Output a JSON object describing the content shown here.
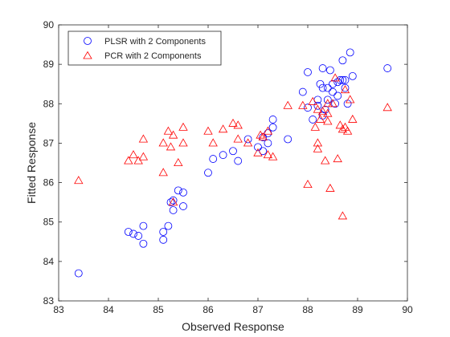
{
  "chart_data": {
    "type": "scatter",
    "title": "",
    "xlabel": "Observed Response",
    "ylabel": "Fitted Response",
    "xlim": [
      83,
      90
    ],
    "ylim": [
      83,
      90
    ],
    "x_ticks": [
      83,
      84,
      85,
      86,
      87,
      88,
      89,
      90
    ],
    "y_ticks": [
      83,
      84,
      85,
      86,
      87,
      88,
      89,
      90
    ],
    "grid": false,
    "legend_location": "top-left",
    "series": [
      {
        "name": "PLSR with 2 Components",
        "marker": "circle",
        "color": "#0000FF",
        "points": [
          [
            83.4,
            83.7
          ],
          [
            84.4,
            84.75
          ],
          [
            84.5,
            84.7
          ],
          [
            84.6,
            84.65
          ],
          [
            84.7,
            84.9
          ],
          [
            84.7,
            84.45
          ],
          [
            85.1,
            84.55
          ],
          [
            85.1,
            84.75
          ],
          [
            85.2,
            84.9
          ],
          [
            85.3,
            85.3
          ],
          [
            85.25,
            85.5
          ],
          [
            85.3,
            85.55
          ],
          [
            85.4,
            85.8
          ],
          [
            85.5,
            85.75
          ],
          [
            85.5,
            85.4
          ],
          [
            86.0,
            86.25
          ],
          [
            86.1,
            86.6
          ],
          [
            86.3,
            86.7
          ],
          [
            86.5,
            86.8
          ],
          [
            86.6,
            86.55
          ],
          [
            86.8,
            87.1
          ],
          [
            87.0,
            86.9
          ],
          [
            87.1,
            87.15
          ],
          [
            87.1,
            86.8
          ],
          [
            87.2,
            87.25
          ],
          [
            87.2,
            87.0
          ],
          [
            87.3,
            87.4
          ],
          [
            87.3,
            87.6
          ],
          [
            87.6,
            87.1
          ],
          [
            88.0,
            88.8
          ],
          [
            88.0,
            87.9
          ],
          [
            87.9,
            88.3
          ],
          [
            88.1,
            87.6
          ],
          [
            88.2,
            87.95
          ],
          [
            88.2,
            88.1
          ],
          [
            88.3,
            88.4
          ],
          [
            88.3,
            88.9
          ],
          [
            88.25,
            88.5
          ],
          [
            88.3,
            87.7
          ],
          [
            88.35,
            87.85
          ],
          [
            88.4,
            88.1
          ],
          [
            88.4,
            88.4
          ],
          [
            88.45,
            88.85
          ],
          [
            88.5,
            88.5
          ],
          [
            88.5,
            88.3
          ],
          [
            88.55,
            88.0
          ],
          [
            88.6,
            88.55
          ],
          [
            88.6,
            88.2
          ],
          [
            88.65,
            88.6
          ],
          [
            88.7,
            89.1
          ],
          [
            88.7,
            88.6
          ],
          [
            88.75,
            88.6
          ],
          [
            88.75,
            88.4
          ],
          [
            88.8,
            88.0
          ],
          [
            88.85,
            89.3
          ],
          [
            88.9,
            88.7
          ],
          [
            89.6,
            88.9
          ]
        ]
      },
      {
        "name": "PCR with 2 Components",
        "marker": "triangle",
        "color": "#FF0000",
        "points": [
          [
            83.4,
            86.05
          ],
          [
            84.4,
            86.55
          ],
          [
            84.5,
            86.7
          ],
          [
            84.6,
            86.55
          ],
          [
            84.7,
            87.1
          ],
          [
            84.7,
            86.65
          ],
          [
            85.1,
            87.0
          ],
          [
            85.1,
            86.25
          ],
          [
            85.2,
            87.3
          ],
          [
            85.25,
            86.9
          ],
          [
            85.3,
            87.2
          ],
          [
            85.3,
            85.5
          ],
          [
            85.4,
            86.5
          ],
          [
            85.5,
            87.4
          ],
          [
            85.5,
            87.0
          ],
          [
            86.0,
            87.3
          ],
          [
            86.1,
            87.0
          ],
          [
            86.3,
            87.35
          ],
          [
            86.5,
            87.5
          ],
          [
            86.6,
            87.45
          ],
          [
            86.6,
            87.1
          ],
          [
            86.8,
            87.0
          ],
          [
            87.0,
            86.75
          ],
          [
            87.05,
            87.2
          ],
          [
            87.1,
            87.15
          ],
          [
            87.2,
            86.7
          ],
          [
            87.2,
            87.3
          ],
          [
            87.3,
            86.65
          ],
          [
            87.6,
            87.95
          ],
          [
            87.9,
            87.95
          ],
          [
            88.0,
            85.95
          ],
          [
            88.1,
            88.05
          ],
          [
            88.15,
            87.4
          ],
          [
            88.2,
            87.0
          ],
          [
            88.2,
            86.85
          ],
          [
            88.2,
            87.85
          ],
          [
            88.25,
            87.6
          ],
          [
            88.3,
            87.8
          ],
          [
            88.35,
            86.55
          ],
          [
            88.4,
            87.55
          ],
          [
            88.4,
            87.75
          ],
          [
            88.4,
            88.0
          ],
          [
            88.45,
            85.85
          ],
          [
            88.5,
            88.0
          ],
          [
            88.55,
            88.65
          ],
          [
            88.6,
            86.6
          ],
          [
            88.65,
            87.45
          ],
          [
            88.7,
            87.35
          ],
          [
            88.7,
            85.15
          ],
          [
            88.75,
            87.4
          ],
          [
            88.75,
            88.35
          ],
          [
            88.8,
            87.3
          ],
          [
            88.85,
            88.1
          ],
          [
            88.9,
            87.6
          ],
          [
            89.6,
            87.9
          ]
        ]
      }
    ]
  }
}
